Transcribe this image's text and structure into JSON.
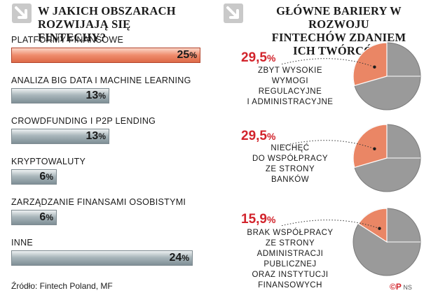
{
  "left_title_line1": "W JAKICH OBSZARACH",
  "left_title_line2": "ROZWIJAJĄ SIĘ FINTECHY?",
  "right_title_line1": "GŁÓWNE BARIERY W ROZWOJU",
  "right_title_line2": "FINTECHÓW ZDANIEM",
  "right_title_line3": "ICH TWÓRCÓW",
  "source": "Źródło: Fintech Poland, MF",
  "credit_logo": "©P",
  "credit_text": "NS",
  "colors": {
    "highlight": "#ef8b6c",
    "bar": "#a9b6bb",
    "pie_grey": "#9a9a9a",
    "pie_accent": "#ea8665",
    "pct_red": "#d2242c"
  },
  "chart_data": [
    {
      "type": "bar",
      "orientation": "horizontal",
      "title": "W JAKICH OBSZARACH ROZWIJAJĄ SIĘ FINTECHY?",
      "categories": [
        "PLATFORMY FINANSOWE",
        "ANALIZA BIG DATA I MACHINE LEARNING",
        "CROWDFUNDING I P2P LENDING",
        "KRYPTOWALUTY",
        "ZARZĄDZANIE FINANSAMI OSOBISTYMI",
        "INNE"
      ],
      "values": [
        25,
        13,
        13,
        6,
        6,
        24
      ],
      "value_labels": [
        "25",
        "13",
        "13",
        "6",
        "6",
        "24"
      ],
      "unit": "%",
      "xlim": [
        0,
        25
      ]
    },
    {
      "type": "pie",
      "title": "GŁÓWNE BARIERY W ROZWOJU FINTECHÓW ZDANIEM ICH TWÓRCÓW",
      "charts": [
        {
          "value": 29.5,
          "value_label": "29,5",
          "desc": [
            "ZBYT WYSOKIE",
            "WYMOGI",
            "REGULACYJNE",
            "I ADMINISTRACYJNE"
          ]
        },
        {
          "value": 29.5,
          "value_label": "29,5",
          "desc": [
            "NIECHĘĆ",
            "DO WSPÓŁPRACY",
            "ZE STRONY",
            "BANKÓW"
          ]
        },
        {
          "value": 15.9,
          "value_label": "15,9",
          "desc": [
            "BRAK WSPÓŁPRACY",
            "ZE STRONY",
            "ADMINISTRACJI",
            "PUBLICZNEJ",
            "ORAZ INSTYTUCJI",
            "FINANSOWYCH"
          ]
        }
      ],
      "unit": "%"
    }
  ]
}
